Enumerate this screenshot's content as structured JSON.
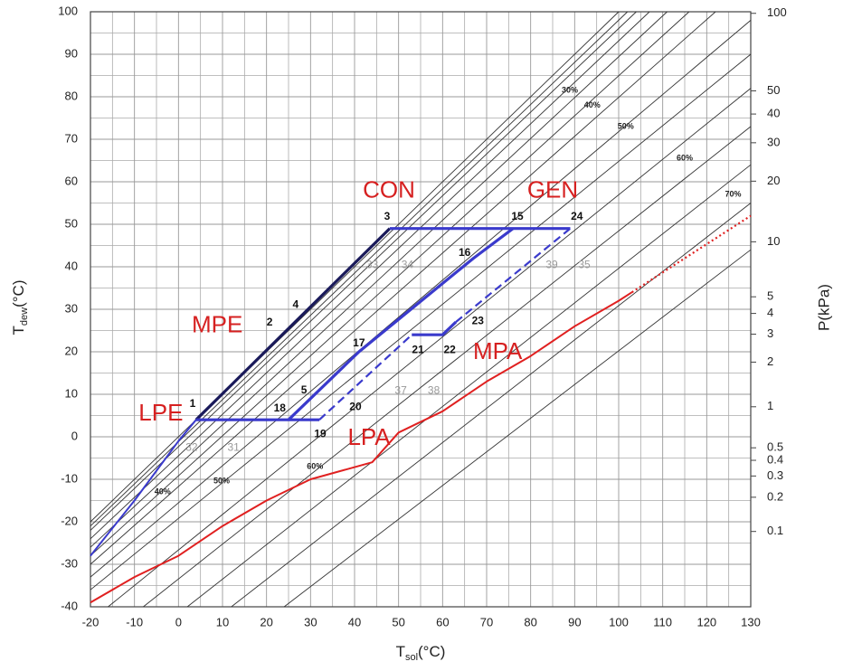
{
  "chart_data": {
    "type": "line",
    "xlabel": {
      "main": "T",
      "sub": "sol",
      "unit": "(°C)"
    },
    "ylabel": {
      "main": "T",
      "sub": "dew",
      "unit": "(°C)"
    },
    "y2label": "P(kPa)",
    "xlim": [
      -20,
      130
    ],
    "xticks": [
      -20,
      -10,
      0,
      10,
      20,
      30,
      40,
      50,
      60,
      70,
      80,
      90,
      100,
      110,
      120,
      130
    ],
    "ylim": [
      -40,
      100
    ],
    "yticks": [
      -40,
      -30,
      -20,
      -10,
      0,
      10,
      20,
      30,
      40,
      50,
      60,
      70,
      80,
      90,
      100
    ],
    "y2ticks": [
      100,
      50,
      40,
      30,
      20,
      10,
      5,
      4,
      3,
      2,
      1,
      0.5,
      0.4,
      0.3,
      0.2,
      0.1
    ],
    "grid": true,
    "series": [
      {
        "color": "#333333",
        "style": "thin",
        "x": [
          -20,
          100
        ],
        "values": [
          -20,
          100
        ]
      },
      {
        "color": "#333333",
        "style": "thin",
        "x": [
          -20,
          102
        ],
        "values": [
          -21,
          100
        ]
      },
      {
        "color": "#333333",
        "style": "thin",
        "x": [
          -20,
          104
        ],
        "values": [
          -22,
          100
        ]
      },
      {
        "color": "#333333",
        "style": "thin",
        "x": [
          -20,
          107
        ],
        "values": [
          -24,
          100
        ]
      },
      {
        "color": "#333333",
        "style": "thin",
        "x": [
          -20,
          111
        ],
        "values": [
          -26,
          100
        ]
      },
      {
        "color": "#333333",
        "style": "thin",
        "x": [
          -20,
          116
        ],
        "values": [
          -28,
          100
        ]
      },
      {
        "color": "#333333",
        "style": "thin",
        "x": [
          -20,
          122
        ],
        "values": [
          -30,
          100
        ]
      },
      {
        "color": "#333333",
        "style": "thin",
        "x": [
          -20,
          130
        ],
        "values": [
          -33,
          98
        ]
      },
      {
        "color": "#333333",
        "style": "thin",
        "x": [
          -20,
          130
        ],
        "values": [
          -36,
          90
        ]
      },
      {
        "color": "#333333",
        "style": "thin",
        "x": [
          -16,
          130
        ],
        "values": [
          -40,
          82
        ]
      },
      {
        "color": "#333333",
        "style": "thin",
        "x": [
          -8,
          130
        ],
        "values": [
          -40,
          73
        ]
      },
      {
        "color": "#333333",
        "style": "thin",
        "x": [
          2,
          130
        ],
        "values": [
          -40,
          64
        ]
      },
      {
        "color": "#333333",
        "style": "thin",
        "x": [
          12,
          130
        ],
        "values": [
          -40,
          55
        ]
      },
      {
        "color": "#333333",
        "style": "thin",
        "x": [
          24,
          130
        ],
        "values": [
          -40,
          44
        ]
      },
      {
        "color": "#e02020",
        "style": "solid",
        "x": [
          -20,
          -10,
          0,
          10,
          20,
          30,
          44,
          50,
          60,
          70,
          80,
          90,
          100,
          103
        ],
        "values": [
          -39,
          -33,
          -28,
          -21,
          -15,
          -10,
          -6,
          1,
          6,
          13,
          19,
          26,
          32,
          34
        ]
      },
      {
        "color": "#e02020",
        "style": "dotted",
        "x": [
          103,
          115,
          130
        ],
        "values": [
          34,
          42,
          52
        ]
      },
      {
        "color": "#3a3acc",
        "style": "solid",
        "x": [
          -20,
          -10,
          0,
          4
        ],
        "values": [
          -28,
          -15,
          -1,
          4
        ]
      },
      {
        "color": "#1a1a5a",
        "style": "thick",
        "x": [
          4,
          48
        ],
        "values": [
          4,
          49
        ]
      },
      {
        "color": "#3a3acc",
        "style": "thick",
        "x": [
          4,
          32
        ],
        "values": [
          4,
          4
        ]
      },
      {
        "color": "#3a3acc",
        "style": "thick",
        "x": [
          25,
          41,
          67,
          76
        ],
        "values": [
          4,
          20,
          42,
          49
        ]
      },
      {
        "color": "#3a3acc",
        "style": "thick",
        "x": [
          48,
          89
        ],
        "values": [
          49,
          49
        ]
      },
      {
        "color": "#3a3acc",
        "style": "dashed",
        "x": [
          32,
          53
        ],
        "values": [
          4,
          24
        ]
      },
      {
        "color": "#3a3acc",
        "style": "thick",
        "x": [
          53,
          60,
          63
        ],
        "values": [
          24,
          24,
          27
        ]
      },
      {
        "color": "#3a3acc",
        "style": "dashed",
        "x": [
          63,
          89
        ],
        "values": [
          27,
          49
        ]
      }
    ],
    "annotations": [
      {
        "text": "CON",
        "style": "region"
      },
      {
        "text": "GEN",
        "style": "region"
      },
      {
        "text": "MPE",
        "style": "region"
      },
      {
        "text": "LPE",
        "style": "region"
      },
      {
        "text": "MPA",
        "style": "region"
      },
      {
        "text": "LPA",
        "style": "region"
      },
      {
        "text": "1",
        "style": "point"
      },
      {
        "text": "2",
        "style": "point"
      },
      {
        "text": "3",
        "style": "point"
      },
      {
        "text": "4",
        "style": "point"
      },
      {
        "text": "5",
        "style": "point"
      },
      {
        "text": "15",
        "style": "point"
      },
      {
        "text": "16",
        "style": "point"
      },
      {
        "text": "17",
        "style": "point"
      },
      {
        "text": "18",
        "style": "point"
      },
      {
        "text": "19",
        "style": "point"
      },
      {
        "text": "20",
        "style": "point"
      },
      {
        "text": "21",
        "style": "point"
      },
      {
        "text": "22",
        "style": "point"
      },
      {
        "text": "23",
        "style": "point"
      },
      {
        "text": "24",
        "style": "point"
      },
      {
        "text": "31",
        "style": "ref"
      },
      {
        "text": "32",
        "style": "ref"
      },
      {
        "text": "33",
        "style": "ref"
      },
      {
        "text": "34",
        "style": "ref"
      },
      {
        "text": "37",
        "style": "ref"
      },
      {
        "text": "38",
        "style": "ref"
      },
      {
        "text": "39",
        "style": "ref"
      },
      {
        "text": "35",
        "style": "ref"
      },
      {
        "text": "30%",
        "style": "pct"
      },
      {
        "text": "40%",
        "style": "pct"
      },
      {
        "text": "50%",
        "style": "pct"
      },
      {
        "text": "60%",
        "style": "pct"
      },
      {
        "text": "70%",
        "style": "pct"
      },
      {
        "text": "40%",
        "style": "pct"
      },
      {
        "text": "50%",
        "style": "pct"
      },
      {
        "text": "60%",
        "style": "pct"
      }
    ]
  }
}
